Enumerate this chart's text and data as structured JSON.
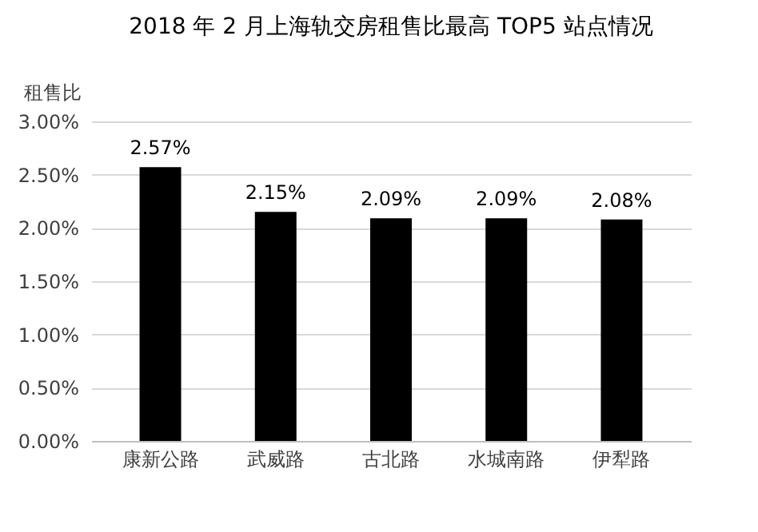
{
  "chart_data": {
    "type": "bar",
    "title": "2018 年 2 月上海轨交房租售比最高 TOP5 站点情况",
    "ylabel": "租售比",
    "categories": [
      "康新公路",
      "武威路",
      "古北路",
      "水城南路",
      "伊犁路"
    ],
    "values": [
      2.57,
      2.15,
      2.09,
      2.09,
      2.08
    ],
    "value_labels": [
      "2.57%",
      "2.15%",
      "2.09%",
      "2.09%",
      "2.08%"
    ],
    "color": "#000000",
    "ylim": [
      0,
      3
    ],
    "yticks": [
      {
        "value": 0,
        "label": "0.00%"
      },
      {
        "value": 0.5,
        "label": "0.50%"
      },
      {
        "value": 1,
        "label": "1.00%"
      },
      {
        "value": 1.5,
        "label": "1.50%"
      },
      {
        "value": 2,
        "label": "2.00%"
      },
      {
        "value": 2.5,
        "label": "2.50%"
      },
      {
        "value": 3,
        "label": "3.00%"
      }
    ],
    "grid": "y"
  }
}
